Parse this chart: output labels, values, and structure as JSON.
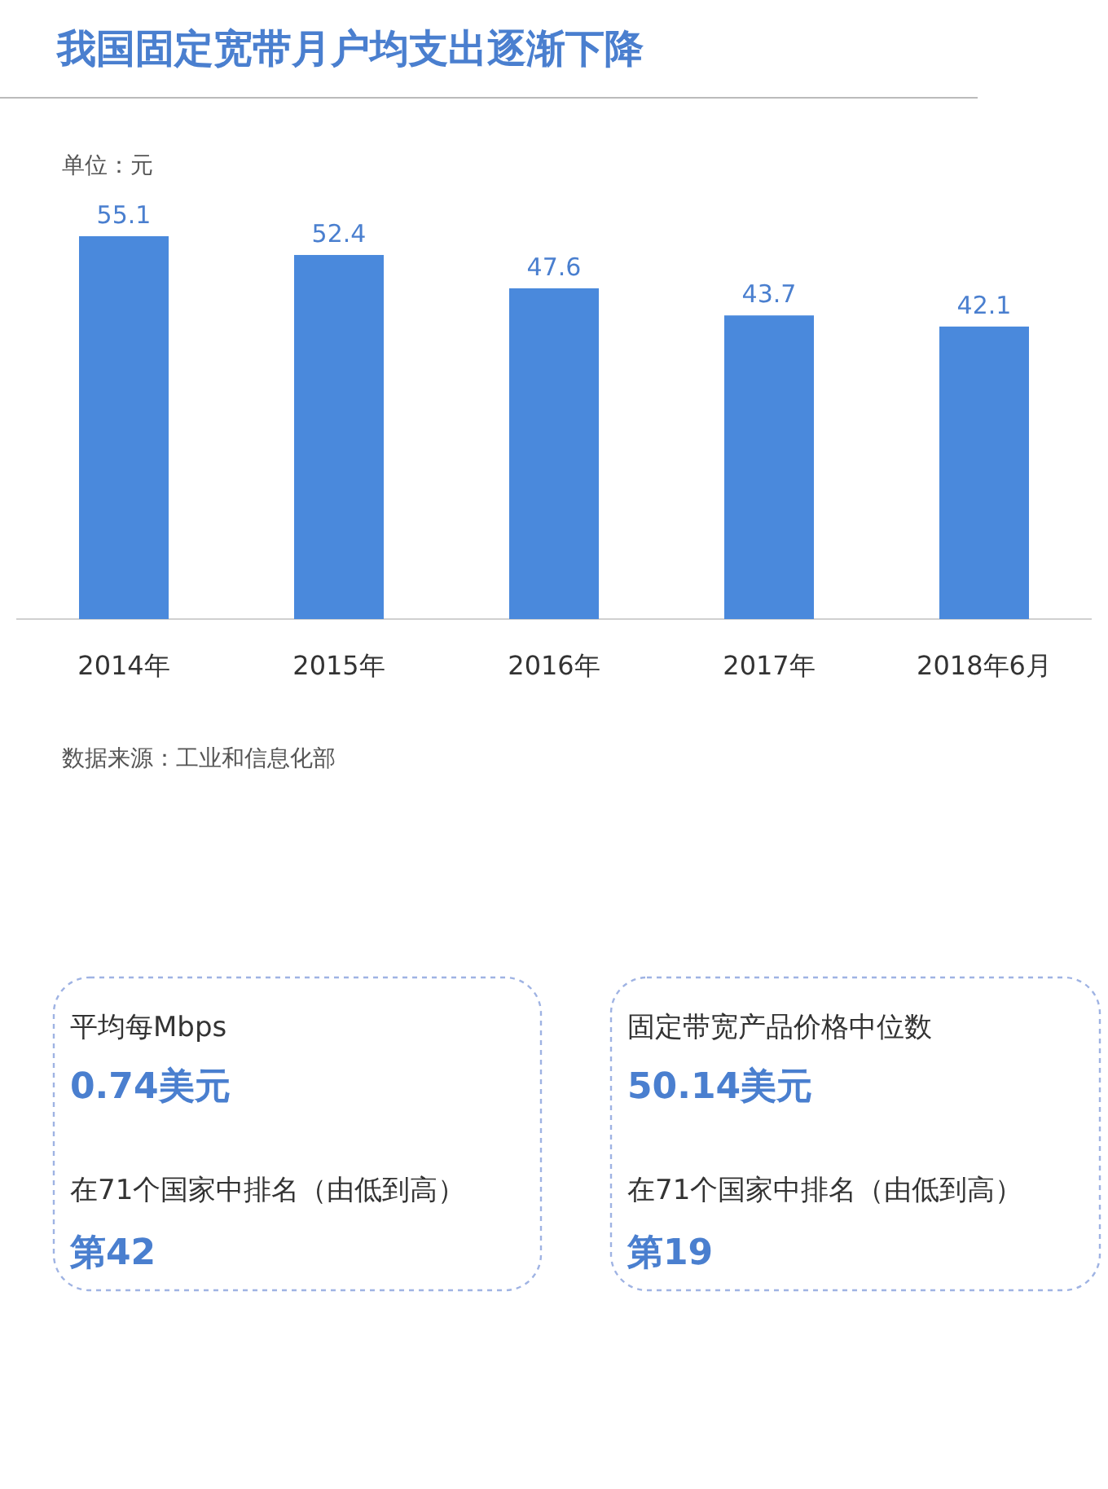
{
  "chart_data": [
    {
      "type": "bar",
      "title": "我国固定宽带月户均支出逐渐下降",
      "categories": [
        "2014年",
        "2015年",
        "2016年",
        "2017年",
        "2018年6月"
      ],
      "values": [
        55.1,
        52.4,
        47.6,
        43.7,
        42.1
      ],
      "color": "#4a89dc",
      "data_labels": true,
      "annotations": [
        "单位：元",
        "数据来源：工业和信息化部"
      ]
    },
    {
      "type": "other",
      "annotations": [
        "平均每Mbps",
        "0.74美元",
        "在71个国家中排名（由低到高）",
        "第42",
        "固定带宽产品价格中位数",
        "50.14美元",
        "在71个国家中排名（由低到高）",
        "第19"
      ]
    }
  ]
}
